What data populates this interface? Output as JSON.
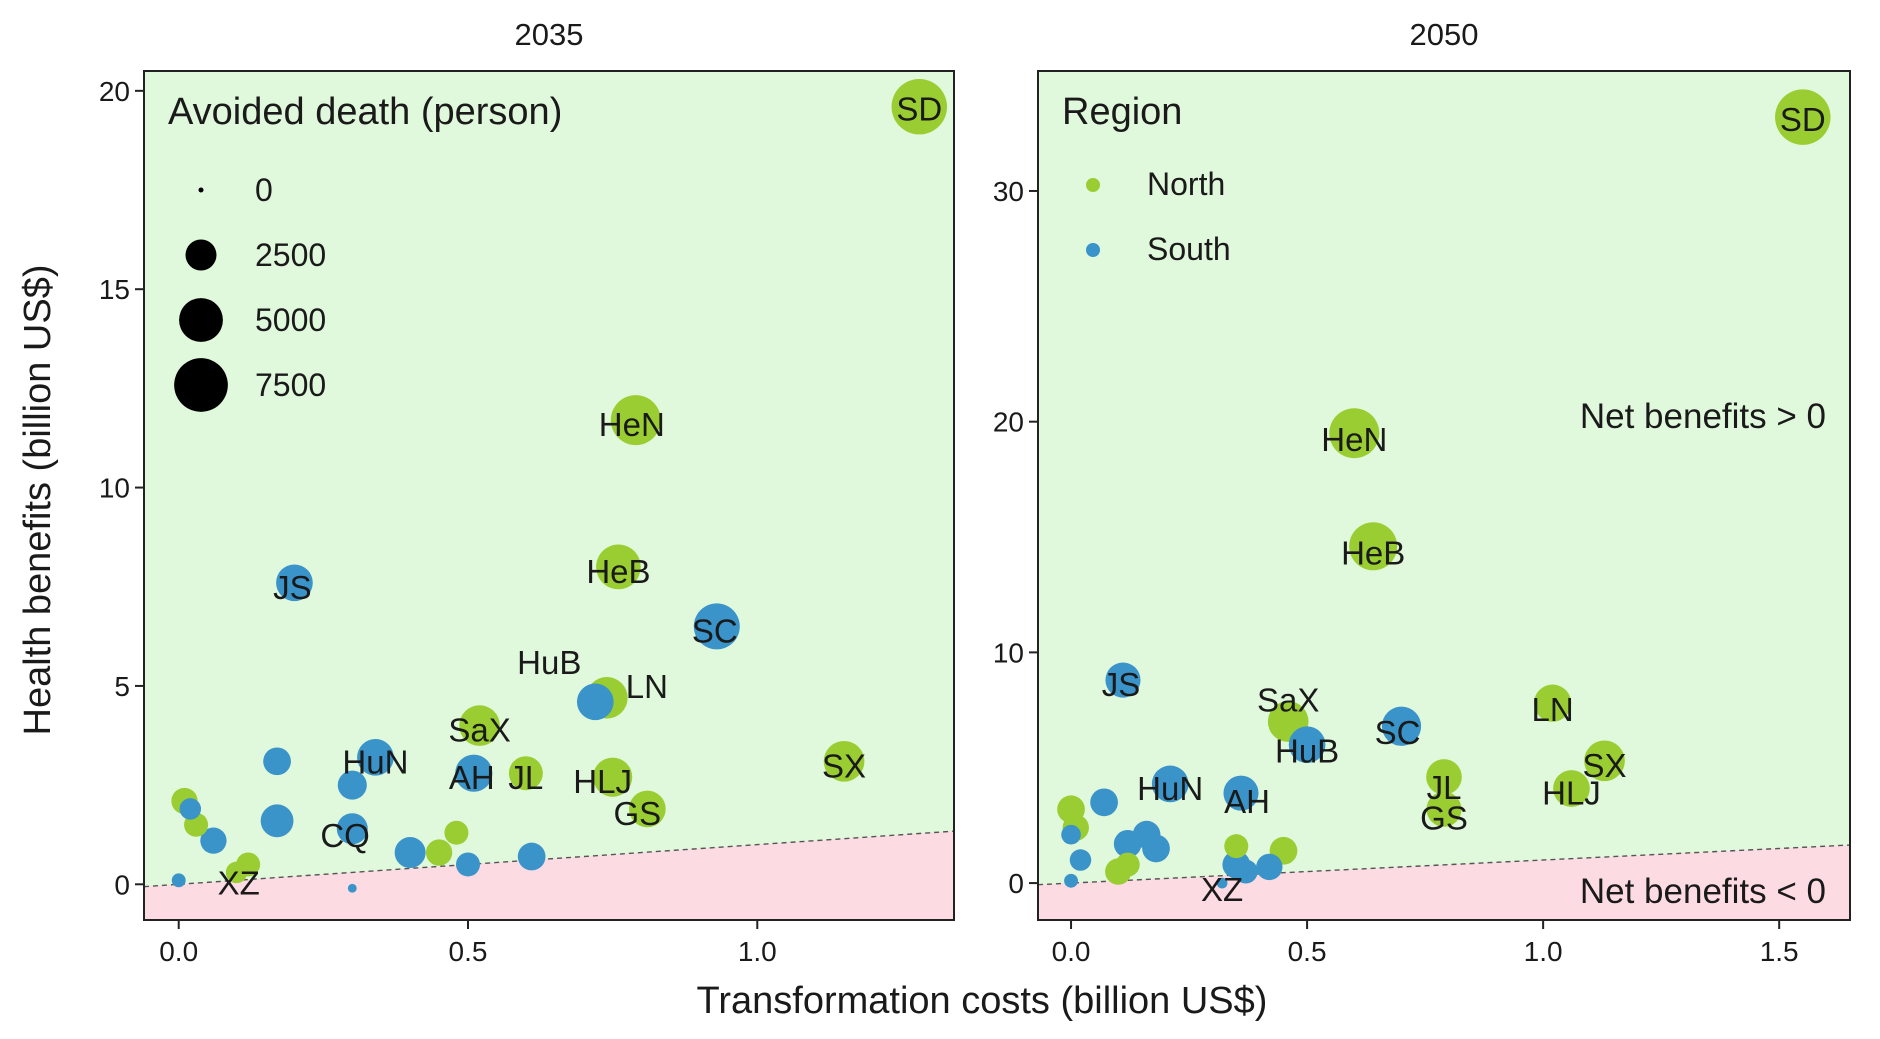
{
  "figure": {
    "ylabel": "Health benefits (billion US$)",
    "xlabel": "Transformation costs (billion US$)"
  },
  "colors": {
    "north": "#9acd32",
    "south": "#3a93c9",
    "positive_region": "#e0f8db",
    "negative_region": "#fcdbe3"
  },
  "chart_data": [
    {
      "type": "scatter",
      "title": "2035",
      "xlim": [
        -0.06,
        1.34
      ],
      "ylim": [
        -0.9,
        20.5
      ],
      "xticks": [
        "0.0",
        "0.5",
        "1.0"
      ],
      "yticks": [
        "0",
        "5",
        "10",
        "15",
        "20"
      ],
      "break_even_line": {
        "x": [
          -0.06,
          1.34
        ],
        "y": [
          -0.06,
          1.34
        ]
      },
      "region_labels": [],
      "legend": {
        "title": "Avoided death (person)",
        "position": "top-left",
        "items": [
          {
            "label": "0",
            "size": 0
          },
          {
            "label": "2500",
            "size": 2500
          },
          {
            "label": "5000",
            "size": 5000
          },
          {
            "label": "7500",
            "size": 7500
          }
        ]
      },
      "series": [
        {
          "name": "North",
          "key": "north",
          "points": [
            {
              "x": 1.28,
              "y": 19.6,
              "size": 8000,
              "label": "SD"
            },
            {
              "x": 0.79,
              "y": 11.7,
              "size": 6500,
              "label": "HeN"
            },
            {
              "x": 0.76,
              "y": 8.0,
              "size": 5200,
              "label": "HeB"
            },
            {
              "x": 0.74,
              "y": 4.7,
              "size": 4500,
              "label": "LN"
            },
            {
              "x": 0.52,
              "y": 4.0,
              "size": 4300,
              "label": "SaX"
            },
            {
              "x": 1.15,
              "y": 3.1,
              "size": 4300,
              "label": "SX"
            },
            {
              "x": 0.75,
              "y": 2.7,
              "size": 4000,
              "label": "HLJ"
            },
            {
              "x": 0.6,
              "y": 2.8,
              "size": 3000,
              "label": "JL"
            },
            {
              "x": 0.81,
              "y": 1.9,
              "size": 3500,
              "label": "GS"
            },
            {
              "x": 0.01,
              "y": 2.1,
              "size": 1800,
              "label": ""
            },
            {
              "x": 0.03,
              "y": 1.5,
              "size": 1500,
              "label": ""
            },
            {
              "x": 0.12,
              "y": 0.5,
              "size": 1500,
              "label": ""
            },
            {
              "x": 0.1,
              "y": 0.3,
              "size": 1200,
              "label": ""
            },
            {
              "x": 0.48,
              "y": 1.3,
              "size": 1500,
              "label": ""
            },
            {
              "x": 0.45,
              "y": 0.8,
              "size": 1800,
              "label": ""
            }
          ]
        },
        {
          "name": "South",
          "key": "south",
          "points": [
            {
              "x": 0.2,
              "y": 7.6,
              "size": 3500,
              "label": "JS"
            },
            {
              "x": 0.93,
              "y": 6.5,
              "size": 5500,
              "label": "SC"
            },
            {
              "x": 0.72,
              "y": 4.6,
              "size": 3500,
              "label": "HuB"
            },
            {
              "x": 0.34,
              "y": 3.2,
              "size": 3500,
              "label": "HuN"
            },
            {
              "x": 0.51,
              "y": 2.8,
              "size": 3600,
              "label": "AH"
            },
            {
              "x": 0.17,
              "y": 1.6,
              "size": 2800,
              "label": "CQ"
            },
            {
              "x": 0.0,
              "y": 0.1,
              "size": 500,
              "label": "XZ"
            },
            {
              "x": 0.17,
              "y": 3.1,
              "size": 2000,
              "label": ""
            },
            {
              "x": 0.3,
              "y": 2.5,
              "size": 2200,
              "label": ""
            },
            {
              "x": 0.3,
              "y": 1.4,
              "size": 2500,
              "label": ""
            },
            {
              "x": 0.02,
              "y": 1.9,
              "size": 1200,
              "label": ""
            },
            {
              "x": 0.06,
              "y": 1.1,
              "size": 1800,
              "label": ""
            },
            {
              "x": 0.4,
              "y": 0.8,
              "size": 2500,
              "label": ""
            },
            {
              "x": 0.61,
              "y": 0.7,
              "size": 2000,
              "label": ""
            },
            {
              "x": 0.5,
              "y": 0.5,
              "size": 1500,
              "label": ""
            },
            {
              "x": 0.3,
              "y": -0.1,
              "size": 200,
              "label": ""
            }
          ]
        }
      ]
    },
    {
      "type": "scatter",
      "title": "2050",
      "xlim": [
        -0.07,
        1.65
      ],
      "ylim": [
        -1.6,
        35.2
      ],
      "xticks": [
        "0.0",
        "0.5",
        "1.0",
        "1.5"
      ],
      "yticks": [
        "0",
        "10",
        "20",
        "30"
      ],
      "break_even_line": {
        "x": [
          -0.07,
          1.65
        ],
        "y": [
          -0.07,
          1.65
        ]
      },
      "region_labels": [
        "Net benefits > 0",
        "Net benefits < 0"
      ],
      "legend": {
        "title": "Region",
        "position": "top-left",
        "items": [
          {
            "label": "North",
            "key": "north"
          },
          {
            "label": "South",
            "key": "south"
          }
        ]
      },
      "series": [
        {
          "name": "North",
          "key": "north",
          "points": [
            {
              "x": 1.55,
              "y": 33.2,
              "size": 8000,
              "label": "SD"
            },
            {
              "x": 0.6,
              "y": 19.5,
              "size": 6500,
              "label": "HeN"
            },
            {
              "x": 0.64,
              "y": 14.6,
              "size": 6000,
              "label": "HeB"
            },
            {
              "x": 1.02,
              "y": 7.8,
              "size": 3600,
              "label": "LN"
            },
            {
              "x": 0.46,
              "y": 7.0,
              "size": 4300,
              "label": "SaX"
            },
            {
              "x": 1.13,
              "y": 5.3,
              "size": 4300,
              "label": "SX"
            },
            {
              "x": 1.06,
              "y": 4.1,
              "size": 3500,
              "label": "HLJ"
            },
            {
              "x": 0.79,
              "y": 4.6,
              "size": 3300,
              "label": "JL"
            },
            {
              "x": 0.79,
              "y": 3.2,
              "size": 3200,
              "label": "GS"
            },
            {
              "x": 0.0,
              "y": 3.2,
              "size": 2000,
              "label": ""
            },
            {
              "x": 0.01,
              "y": 2.4,
              "size": 1800,
              "label": ""
            },
            {
              "x": 0.1,
              "y": 0.5,
              "size": 1800,
              "label": ""
            },
            {
              "x": 0.12,
              "y": 0.8,
              "size": 1500,
              "label": ""
            },
            {
              "x": 0.35,
              "y": 1.6,
              "size": 1500,
              "label": ""
            },
            {
              "x": 0.45,
              "y": 1.4,
              "size": 2000,
              "label": ""
            }
          ]
        },
        {
          "name": "South",
          "key": "south",
          "points": [
            {
              "x": 0.11,
              "y": 8.8,
              "size": 3200,
              "label": "JS"
            },
            {
              "x": 0.7,
              "y": 6.8,
              "size": 4000,
              "label": "SC"
            },
            {
              "x": 0.5,
              "y": 6.0,
              "size": 3500,
              "label": "HuB"
            },
            {
              "x": 0.21,
              "y": 4.3,
              "size": 3500,
              "label": "HuN"
            },
            {
              "x": 0.36,
              "y": 3.9,
              "size": 3200,
              "label": "AH"
            },
            {
              "x": 0.07,
              "y": 3.5,
              "size": 2000,
              "label": ""
            },
            {
              "x": 0.0,
              "y": 2.1,
              "size": 1000,
              "label": ""
            },
            {
              "x": 0.02,
              "y": 1.0,
              "size": 1200,
              "label": ""
            },
            {
              "x": 0.0,
              "y": 0.1,
              "size": 500,
              "label": ""
            },
            {
              "x": 0.16,
              "y": 2.1,
              "size": 2000,
              "label": ""
            },
            {
              "x": 0.12,
              "y": 1.7,
              "size": 2000,
              "label": ""
            },
            {
              "x": 0.18,
              "y": 1.5,
              "size": 2000,
              "label": ""
            },
            {
              "x": 0.35,
              "y": 0.8,
              "size": 2000,
              "label": ""
            },
            {
              "x": 0.37,
              "y": 0.5,
              "size": 1500,
              "label": ""
            },
            {
              "x": 0.42,
              "y": 0.7,
              "size": 1800,
              "label": ""
            },
            {
              "x": 0.32,
              "y": 0.0,
              "size": 300,
              "label": "XZ"
            }
          ]
        }
      ]
    }
  ]
}
